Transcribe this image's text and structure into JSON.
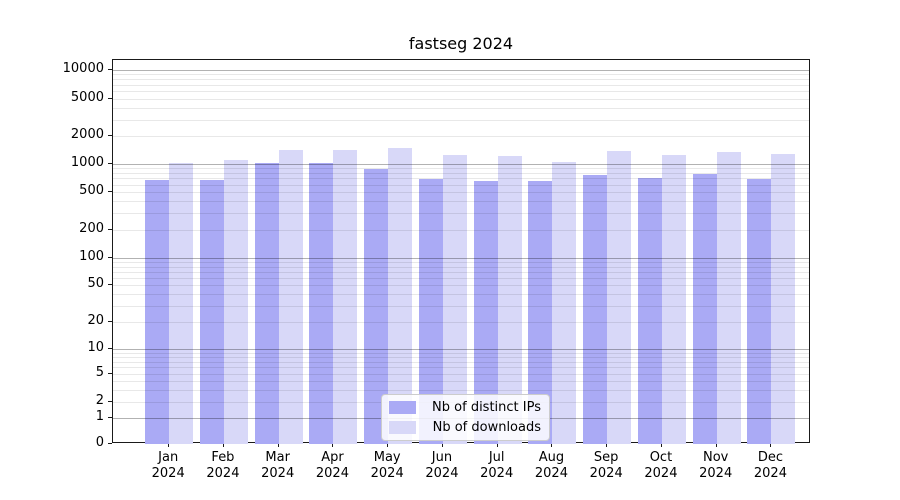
{
  "title": "fastseg 2024",
  "legend": {
    "entries": [
      {
        "label": "Nb of distinct IPs",
        "color": "#aaaaf5"
      },
      {
        "label": "Nb of downloads",
        "color": "#d8d8f8"
      }
    ],
    "position": "lower center"
  },
  "chart_data": {
    "type": "bar",
    "title": "fastseg 2024",
    "categories": [
      "Jan 2024",
      "Feb 2024",
      "Mar 2024",
      "Apr 2024",
      "May 2024",
      "Jun 2024",
      "Jul 2024",
      "Aug 2024",
      "Sep 2024",
      "Oct 2024",
      "Nov 2024",
      "Dec 2024"
    ],
    "series": [
      {
        "name": "Nb of distinct IPs",
        "color": "#aaaaf5",
        "values": [
          670,
          670,
          1020,
          1015,
          880,
          690,
          655,
          660,
          755,
          705,
          780,
          690
        ]
      },
      {
        "name": "Nb of downloads",
        "color": "#d8d8f8",
        "values": [
          1030,
          1100,
          1420,
          1425,
          1480,
          1250,
          1210,
          1060,
          1370,
          1240,
          1350,
          1290
        ]
      }
    ],
    "xlabel": "",
    "ylabel": "",
    "yscale": "symlog",
    "yticks": [
      10000,
      5000,
      2000,
      1000,
      500,
      200,
      100,
      50,
      20,
      10,
      5,
      2,
      1,
      0
    ],
    "ylim": [
      0,
      13000
    ],
    "grid": "both, drawn above bars",
    "legend_position": "lower center"
  }
}
